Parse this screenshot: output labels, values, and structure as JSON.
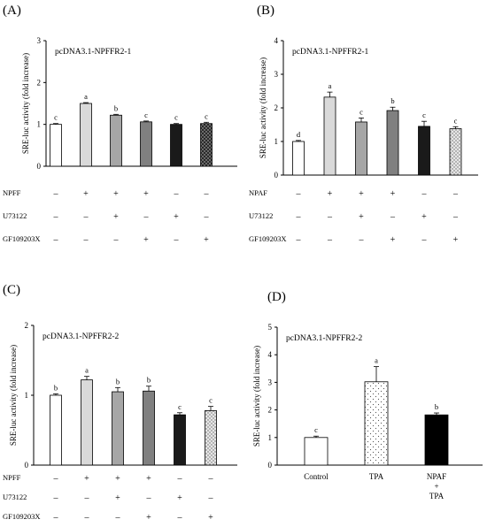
{
  "chart_data": [
    {
      "id": "A",
      "type": "bar",
      "panel_label": "(A)",
      "title": "pcDNA3.1-NPFFR2-1",
      "ylabel": "SRE-luc activity (fold increase)",
      "ylim": [
        0,
        3
      ],
      "yticks": [
        0,
        1,
        2,
        3
      ],
      "values": [
        1.0,
        1.5,
        1.22,
        1.06,
        1.0,
        1.02
      ],
      "errors": [
        0.02,
        0.02,
        0.02,
        0.02,
        0.02,
        0.03
      ],
      "sig_letters": [
        "c",
        "a",
        "b",
        "c",
        "c",
        "c"
      ],
      "colors": [
        "#ffffff",
        "#d9d9d9",
        "#a6a6a6",
        "#808080",
        "#1a1a1a",
        "pattern-dark"
      ],
      "treatments": [
        {
          "name": "NPFF",
          "marks": [
            "–",
            "+",
            "+",
            "+",
            "–",
            "–"
          ]
        },
        {
          "name": "U73122",
          "marks": [
            "–",
            "–",
            "+",
            "–",
            "+",
            "–"
          ]
        },
        {
          "name": "GF109203X",
          "marks": [
            "–",
            "–",
            "–",
            "+",
            "–",
            "+"
          ]
        }
      ]
    },
    {
      "id": "B",
      "type": "bar",
      "panel_label": "(B)",
      "title": "pcDNA3.1-NPFFR2-1",
      "ylabel": "SRE-luc activity (fold increase)",
      "ylim": [
        0,
        4
      ],
      "yticks": [
        0,
        1,
        2,
        3,
        4
      ],
      "values": [
        1.0,
        2.32,
        1.58,
        1.92,
        1.45,
        1.38
      ],
      "errors": [
        0.03,
        0.15,
        0.12,
        0.1,
        0.15,
        0.06
      ],
      "sig_letters": [
        "d",
        "a",
        "c",
        "b",
        "c",
        "c"
      ],
      "colors": [
        "#ffffff",
        "#d9d9d9",
        "#a6a6a6",
        "#808080",
        "#1a1a1a",
        "pattern-light"
      ],
      "treatments": [
        {
          "name": "NPAF",
          "marks": [
            "–",
            "+",
            "+",
            "+",
            "–",
            "–"
          ]
        },
        {
          "name": "U73122",
          "marks": [
            "–",
            "–",
            "+",
            "–",
            "+",
            "–"
          ]
        },
        {
          "name": "GF109203X",
          "marks": [
            "–",
            "–",
            "–",
            "+",
            "–",
            "+"
          ]
        }
      ]
    },
    {
      "id": "C",
      "type": "bar",
      "panel_label": "(C)",
      "title": "pcDNA3.1-NPFFR2-2",
      "ylabel": "SRE-luc activity (fold increase)",
      "ylim": [
        0,
        2
      ],
      "yticks": [
        0,
        1,
        2
      ],
      "values": [
        1.0,
        1.22,
        1.05,
        1.06,
        0.72,
        0.78
      ],
      "errors": [
        0.02,
        0.05,
        0.06,
        0.07,
        0.03,
        0.06
      ],
      "sig_letters": [
        "b",
        "a",
        "b",
        "b",
        "c",
        "c"
      ],
      "colors": [
        "#ffffff",
        "#d9d9d9",
        "#a6a6a6",
        "#808080",
        "#1a1a1a",
        "pattern-light"
      ],
      "treatments": [
        {
          "name": "NPFF",
          "marks": [
            "–",
            "+",
            "+",
            "+",
            "–",
            "–"
          ]
        },
        {
          "name": "U73122",
          "marks": [
            "–",
            "–",
            "+",
            "–",
            "+",
            "–"
          ]
        },
        {
          "name": "GF109203X",
          "marks": [
            "–",
            "–",
            "–",
            "+",
            "–",
            "+"
          ]
        }
      ]
    },
    {
      "id": "D",
      "type": "bar",
      "panel_label": "(D)",
      "title": "pcDNA3.1-NPFFR2-2",
      "ylabel": "SRE-luc activity (fold increase)",
      "ylim": [
        0,
        5
      ],
      "yticks": [
        0,
        1,
        2,
        3,
        4,
        5
      ],
      "categories": [
        "Control",
        "TPA",
        "NPAF + TPA"
      ],
      "category_lines": [
        [
          "Control"
        ],
        [
          "TPA"
        ],
        [
          "NPAF",
          "+",
          "TPA"
        ]
      ],
      "values": [
        1.0,
        3.02,
        1.82
      ],
      "errors": [
        0.05,
        0.55,
        0.07
      ],
      "sig_letters": [
        "c",
        "a",
        "b"
      ],
      "colors": [
        "#ffffff",
        "pattern-dots",
        "#000000"
      ]
    }
  ]
}
